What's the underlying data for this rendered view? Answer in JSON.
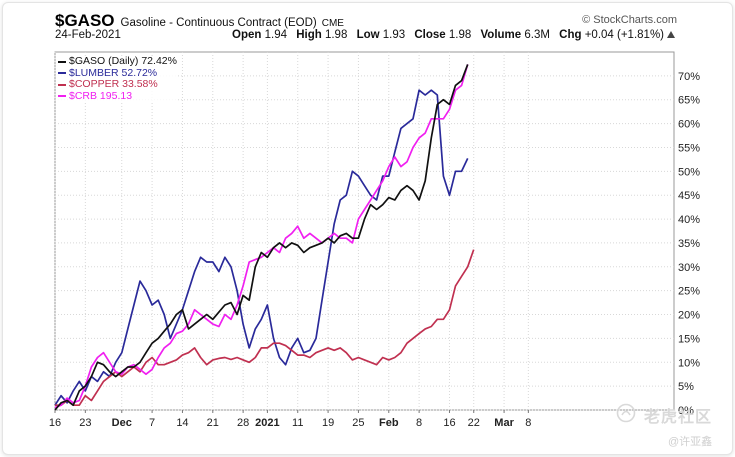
{
  "header": {
    "symbol": "$GASO",
    "description": "Gasoline - Continuous Contract (EOD)",
    "exchange": "CME",
    "brand": "© StockCharts.com",
    "date": "24-Feb-2021",
    "open_label": "Open",
    "open": "1.94",
    "high_label": "High",
    "high": "1.98",
    "low_label": "Low",
    "low": "1.93",
    "close_label": "Close",
    "close": "1.98",
    "volume_label": "Volume",
    "volume": "6.3M",
    "chg_label": "Chg",
    "chg": "+0.04 (+1.81%)"
  },
  "legend": [
    {
      "text": "$GASO (Daily) 72.42%",
      "color": "#111111"
    },
    {
      "text": "$LUMBER 52.72%",
      "color": "#2a2a9a"
    },
    {
      "text": "$COPPER 33.58%",
      "color": "#c03050"
    },
    {
      "text": "$CRB 195.13",
      "color": "#f020f0"
    }
  ],
  "watermark": {
    "main": "老虎社区",
    "sub": "@许亚鑫"
  },
  "chart_data": {
    "type": "line",
    "ylim": [
      0,
      75
    ],
    "yticks": [
      0,
      5,
      10,
      15,
      20,
      25,
      30,
      35,
      40,
      45,
      50,
      55,
      60,
      65,
      70
    ],
    "ytick_labels": [
      "0%",
      "5%",
      "10%",
      "15%",
      "20%",
      "25%",
      "30%",
      "35%",
      "40%",
      "45%",
      "50%",
      "55%",
      "60%",
      "65%",
      "70%"
    ],
    "xlim": [
      0,
      102
    ],
    "xticks": [
      {
        "label": "16",
        "x": 0,
        "bold": false
      },
      {
        "label": "23",
        "x": 5,
        "bold": false
      },
      {
        "label": "Dec",
        "x": 11,
        "bold": true
      },
      {
        "label": "7",
        "x": 16,
        "bold": false
      },
      {
        "label": "14",
        "x": 21,
        "bold": false
      },
      {
        "label": "21",
        "x": 26,
        "bold": false
      },
      {
        "label": "28",
        "x": 31,
        "bold": false
      },
      {
        "label": "2021",
        "x": 35,
        "bold": true
      },
      {
        "label": "11",
        "x": 40,
        "bold": false
      },
      {
        "label": "19",
        "x": 45,
        "bold": false
      },
      {
        "label": "25",
        "x": 50,
        "bold": false
      },
      {
        "label": "Feb",
        "x": 55,
        "bold": true
      },
      {
        "label": "8",
        "x": 60,
        "bold": false
      },
      {
        "label": "16",
        "x": 65,
        "bold": false
      },
      {
        "label": "22",
        "x": 69,
        "bold": false
      },
      {
        "label": "Mar",
        "x": 74,
        "bold": true
      },
      {
        "label": "8",
        "x": 78,
        "bold": false
      }
    ],
    "grid": true,
    "series": [
      {
        "name": "$LUMBER",
        "color": "#2a2a9a",
        "points": [
          [
            0,
            1
          ],
          [
            1,
            3
          ],
          [
            2,
            1.5
          ],
          [
            3,
            4
          ],
          [
            4,
            6
          ],
          [
            5,
            4
          ],
          [
            6,
            7
          ],
          [
            7,
            6
          ],
          [
            8,
            8
          ],
          [
            9,
            7
          ],
          [
            10,
            10
          ],
          [
            11,
            12
          ],
          [
            12,
            17
          ],
          [
            13,
            22
          ],
          [
            14,
            27
          ],
          [
            15,
            25
          ],
          [
            16,
            22
          ],
          [
            17,
            23
          ],
          [
            18,
            20
          ],
          [
            19,
            15
          ],
          [
            20,
            18
          ],
          [
            21,
            21
          ],
          [
            22,
            25
          ],
          [
            23,
            29
          ],
          [
            24,
            32
          ],
          [
            25,
            31
          ],
          [
            26,
            31
          ],
          [
            27,
            29
          ],
          [
            28,
            32
          ],
          [
            29,
            30
          ],
          [
            30,
            25
          ],
          [
            31,
            18
          ],
          [
            32,
            13
          ],
          [
            33,
            17
          ],
          [
            34,
            19
          ],
          [
            35,
            22
          ],
          [
            36,
            15
          ],
          [
            37,
            11
          ],
          [
            38,
            9.5
          ],
          [
            39,
            13
          ],
          [
            40,
            15
          ],
          [
            41,
            12
          ],
          [
            42,
            12.5
          ],
          [
            43,
            15
          ],
          [
            44,
            23
          ],
          [
            45,
            31
          ],
          [
            46,
            39
          ],
          [
            47,
            44
          ],
          [
            48,
            45
          ],
          [
            49,
            50
          ],
          [
            50,
            49
          ],
          [
            51,
            47
          ],
          [
            52,
            45
          ],
          [
            53,
            44
          ],
          [
            54,
            49
          ],
          [
            55,
            49
          ],
          [
            56,
            54
          ],
          [
            57,
            59
          ],
          [
            58,
            60
          ],
          [
            59,
            61
          ],
          [
            60,
            67
          ],
          [
            61,
            66
          ],
          [
            62,
            67
          ],
          [
            63,
            66
          ],
          [
            64,
            49
          ],
          [
            65,
            45
          ],
          [
            66,
            50
          ],
          [
            67,
            50
          ],
          [
            68,
            52.7
          ]
        ]
      },
      {
        "name": "$COPPER",
        "color": "#c03050",
        "points": [
          [
            0,
            1
          ],
          [
            1,
            1
          ],
          [
            2,
            2
          ],
          [
            3,
            1
          ],
          [
            4,
            1
          ],
          [
            5,
            3
          ],
          [
            6,
            2
          ],
          [
            7,
            4
          ],
          [
            8,
            6
          ],
          [
            9,
            7
          ],
          [
            10,
            8
          ],
          [
            11,
            7
          ],
          [
            12,
            8
          ],
          [
            13,
            9
          ],
          [
            14,
            8
          ],
          [
            15,
            10
          ],
          [
            16,
            11
          ],
          [
            17,
            9.5
          ],
          [
            18,
            9.5
          ],
          [
            19,
            10
          ],
          [
            20,
            10.5
          ],
          [
            21,
            11.5
          ],
          [
            22,
            12
          ],
          [
            23,
            13
          ],
          [
            24,
            11
          ],
          [
            25,
            9.5
          ],
          [
            26,
            10.5
          ],
          [
            27,
            10.8
          ],
          [
            28,
            11
          ],
          [
            29,
            10.6
          ],
          [
            30,
            11
          ],
          [
            31,
            10.5
          ],
          [
            32,
            10
          ],
          [
            33,
            11
          ],
          [
            34,
            13
          ],
          [
            35,
            13
          ],
          [
            36,
            14
          ],
          [
            37,
            14
          ],
          [
            38,
            13.5
          ],
          [
            39,
            12.5
          ],
          [
            40,
            11.5
          ],
          [
            41,
            11.5
          ],
          [
            42,
            11
          ],
          [
            43,
            12
          ],
          [
            44,
            12.5
          ],
          [
            45,
            13
          ],
          [
            46,
            12.5
          ],
          [
            47,
            13
          ],
          [
            48,
            12
          ],
          [
            49,
            10.5
          ],
          [
            50,
            11
          ],
          [
            51,
            10.5
          ],
          [
            52,
            10
          ],
          [
            53,
            9.5
          ],
          [
            54,
            11
          ],
          [
            55,
            10.5
          ],
          [
            56,
            11
          ],
          [
            57,
            12
          ],
          [
            58,
            14
          ],
          [
            59,
            15
          ],
          [
            60,
            16
          ],
          [
            61,
            17
          ],
          [
            62,
            17.5
          ],
          [
            63,
            19
          ],
          [
            64,
            19
          ],
          [
            65,
            21
          ],
          [
            66,
            26
          ],
          [
            67,
            28
          ],
          [
            68,
            30
          ],
          [
            69,
            33.6
          ]
        ]
      },
      {
        "name": "$CRB",
        "color": "#f020f0",
        "points": [
          [
            0,
            0.5
          ],
          [
            1,
            1
          ],
          [
            2,
            2.5
          ],
          [
            3,
            1.5
          ],
          [
            4,
            2
          ],
          [
            5,
            5
          ],
          [
            6,
            9
          ],
          [
            7,
            11
          ],
          [
            8,
            12
          ],
          [
            9,
            10
          ],
          [
            10,
            8
          ],
          [
            11,
            7.5
          ],
          [
            12,
            9
          ],
          [
            13,
            9.5
          ],
          [
            14,
            8.5
          ],
          [
            15,
            7.5
          ],
          [
            16,
            8.5
          ],
          [
            17,
            11
          ],
          [
            18,
            13
          ],
          [
            19,
            14
          ],
          [
            20,
            16
          ],
          [
            21,
            16.5
          ],
          [
            22,
            18
          ],
          [
            23,
            21
          ],
          [
            24,
            20
          ],
          [
            25,
            19
          ],
          [
            26,
            18
          ],
          [
            27,
            17.5
          ],
          [
            28,
            20
          ],
          [
            29,
            19
          ],
          [
            30,
            22
          ],
          [
            31,
            26
          ],
          [
            32,
            31
          ],
          [
            33,
            31.5
          ],
          [
            34,
            32
          ],
          [
            35,
            33
          ],
          [
            36,
            34
          ],
          [
            37,
            33
          ],
          [
            38,
            36
          ],
          [
            39,
            37
          ],
          [
            40,
            38.5
          ],
          [
            41,
            36
          ],
          [
            42,
            37
          ],
          [
            43,
            36
          ],
          [
            44,
            35
          ],
          [
            45,
            36
          ],
          [
            46,
            37
          ],
          [
            47,
            36
          ],
          [
            48,
            36
          ],
          [
            49,
            35
          ],
          [
            50,
            40
          ],
          [
            51,
            42
          ],
          [
            52,
            44
          ],
          [
            53,
            46
          ],
          [
            54,
            48
          ],
          [
            55,
            51
          ],
          [
            56,
            53
          ],
          [
            57,
            51
          ],
          [
            58,
            52
          ],
          [
            59,
            55
          ],
          [
            60,
            57
          ],
          [
            61,
            58
          ],
          [
            62,
            61
          ],
          [
            63,
            61
          ],
          [
            64,
            61
          ],
          [
            65,
            63
          ],
          [
            66,
            67
          ],
          [
            67,
            68
          ],
          [
            68,
            72.4
          ]
        ]
      },
      {
        "name": "$GASO",
        "color": "#111111",
        "points": [
          [
            0,
            0
          ],
          [
            1,
            1.5
          ],
          [
            2,
            2
          ],
          [
            3,
            1
          ],
          [
            4,
            4
          ],
          [
            5,
            5
          ],
          [
            6,
            7
          ],
          [
            7,
            10
          ],
          [
            8,
            9.5
          ],
          [
            9,
            8
          ],
          [
            10,
            7
          ],
          [
            11,
            8
          ],
          [
            12,
            9
          ],
          [
            13,
            9
          ],
          [
            14,
            10
          ],
          [
            15,
            12
          ],
          [
            16,
            14
          ],
          [
            17,
            15
          ],
          [
            18,
            16.5
          ],
          [
            19,
            18
          ],
          [
            20,
            20
          ],
          [
            21,
            21
          ],
          [
            22,
            17
          ],
          [
            23,
            18
          ],
          [
            24,
            19
          ],
          [
            25,
            20
          ],
          [
            26,
            19
          ],
          [
            27,
            20.5
          ],
          [
            28,
            22
          ],
          [
            29,
            22.5
          ],
          [
            30,
            20
          ],
          [
            31,
            24
          ],
          [
            32,
            23
          ],
          [
            33,
            30
          ],
          [
            34,
            33
          ],
          [
            35,
            32
          ],
          [
            36,
            34
          ],
          [
            37,
            35
          ],
          [
            38,
            34
          ],
          [
            39,
            35
          ],
          [
            40,
            34.5
          ],
          [
            41,
            33
          ],
          [
            42,
            34
          ],
          [
            43,
            34.5
          ],
          [
            44,
            35
          ],
          [
            45,
            36
          ],
          [
            46,
            35
          ],
          [
            47,
            36.5
          ],
          [
            48,
            37
          ],
          [
            49,
            36
          ],
          [
            50,
            36
          ],
          [
            51,
            40
          ],
          [
            52,
            43
          ],
          [
            53,
            42
          ],
          [
            54,
            43
          ],
          [
            55,
            44.5
          ],
          [
            56,
            44
          ],
          [
            57,
            46
          ],
          [
            58,
            47
          ],
          [
            59,
            46
          ],
          [
            60,
            44
          ],
          [
            61,
            48
          ],
          [
            62,
            57
          ],
          [
            63,
            64
          ],
          [
            64,
            65
          ],
          [
            65,
            64
          ],
          [
            66,
            68
          ],
          [
            67,
            69
          ],
          [
            68,
            72.4
          ]
        ]
      }
    ]
  }
}
